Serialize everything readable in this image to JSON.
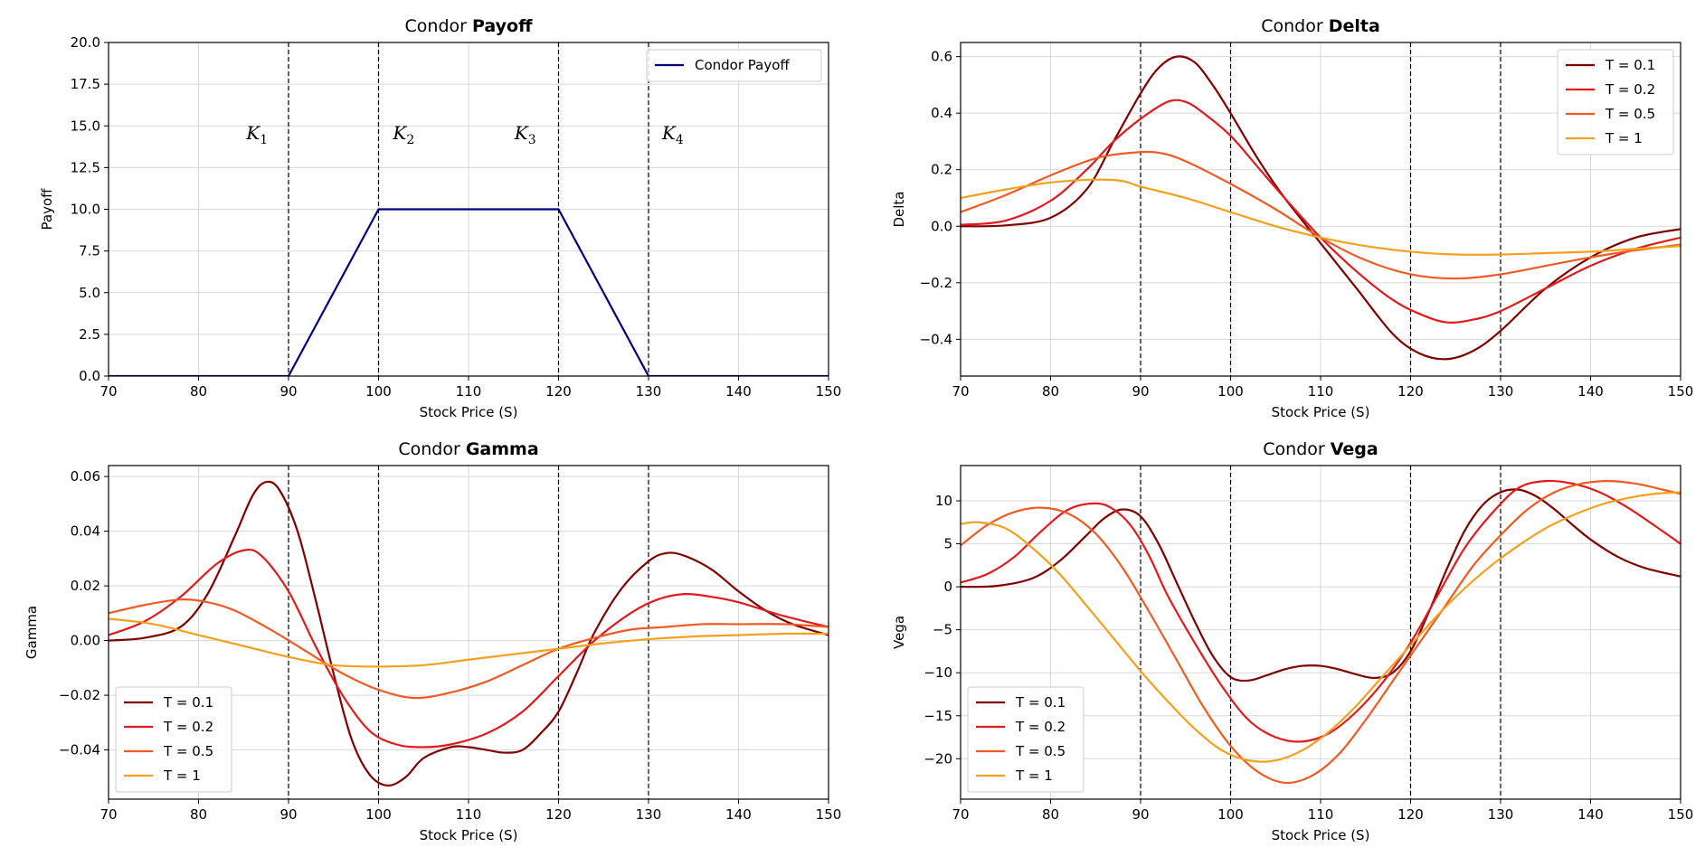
{
  "colors": {
    "payoff": "#00007f",
    "T = 0.1": "#800000",
    "T = 0.2": "#e31a1c",
    "T = 0.5": "#f15a22",
    "T = 1": "#f5a01c",
    "grid": "#d9d9d9",
    "strike_line": "#000000"
  },
  "strikes": [
    90,
    100,
    120,
    130
  ],
  "chart_data": [
    {
      "id": "payoff",
      "type": "line",
      "title": "Condor",
      "title_bold": "Payoff",
      "xlabel": "Stock Price (S)",
      "ylabel": "Payoff",
      "xlim": [
        70,
        150
      ],
      "ylim": [
        0,
        20
      ],
      "xticks": [
        70,
        80,
        90,
        100,
        110,
        120,
        130,
        140,
        150
      ],
      "xtick_labels": [
        "70",
        "80",
        "90",
        "100",
        "110",
        "120",
        "130",
        "140",
        "150"
      ],
      "yticks": [
        0,
        2.5,
        5,
        7.5,
        10,
        12.5,
        15,
        17.5,
        20
      ],
      "ytick_labels": [
        "0.0",
        "2.5",
        "5.0",
        "7.5",
        "10.0",
        "12.5",
        "15.0",
        "17.5",
        "20.0"
      ],
      "grid": true,
      "legend_position": "upper right",
      "strike_labels": [
        {
          "base": "K",
          "sub": "1",
          "x": 86.5,
          "y": 14.2
        },
        {
          "base": "K",
          "sub": "2",
          "x": 102.8,
          "y": 14.2
        },
        {
          "base": "K",
          "sub": "3",
          "x": 116.3,
          "y": 14.2
        },
        {
          "base": "K",
          "sub": "4",
          "x": 132.7,
          "y": 14.2
        }
      ],
      "series": [
        {
          "name": "Condor Payoff",
          "x": [
            70,
            90,
            100,
            120,
            130,
            150
          ],
          "y": [
            0,
            0,
            10,
            10,
            0,
            0
          ]
        }
      ]
    },
    {
      "id": "delta",
      "type": "line",
      "title": "Condor",
      "title_bold": "Delta",
      "xlabel": "Stock Price (S)",
      "ylabel": "Delta",
      "xlim": [
        70,
        150
      ],
      "ylim": [
        -0.53,
        0.65
      ],
      "xticks": [
        70,
        80,
        90,
        100,
        110,
        120,
        130,
        140,
        150
      ],
      "xtick_labels": [
        "70",
        "80",
        "90",
        "100",
        "110",
        "120",
        "130",
        "140",
        "150"
      ],
      "yticks": [
        -0.4,
        -0.2,
        0,
        0.2,
        0.4,
        0.6
      ],
      "ytick_labels": [
        "−0.4",
        "−0.2",
        "0.0",
        "0.2",
        "0.4",
        "0.6"
      ],
      "grid": true,
      "legend_position": "upper right",
      "series": [
        {
          "name": "T = 0.1",
          "x": [
            70,
            75,
            80,
            84,
            87,
            90,
            92,
            94,
            96,
            98,
            100,
            103,
            106,
            110,
            114,
            118,
            121,
            124,
            127,
            130,
            135,
            140,
            145,
            150
          ],
          "y": [
            0.0,
            0.003,
            0.03,
            0.13,
            0.3,
            0.47,
            0.56,
            0.6,
            0.58,
            0.5,
            0.4,
            0.24,
            0.1,
            -0.06,
            -0.22,
            -0.38,
            -0.45,
            -0.47,
            -0.44,
            -0.37,
            -0.22,
            -0.11,
            -0.04,
            -0.01
          ]
        },
        {
          "name": "T = 0.2",
          "x": [
            70,
            75,
            80,
            84,
            87,
            90,
            93,
            95,
            97,
            100,
            103,
            106,
            110,
            114,
            118,
            121,
            124,
            127,
            130,
            135,
            140,
            145,
            150
          ],
          "y": [
            0.005,
            0.02,
            0.09,
            0.2,
            0.3,
            0.38,
            0.44,
            0.44,
            0.4,
            0.32,
            0.21,
            0.1,
            -0.04,
            -0.16,
            -0.26,
            -0.31,
            -0.34,
            -0.33,
            -0.3,
            -0.22,
            -0.14,
            -0.08,
            -0.04
          ]
        },
        {
          "name": "T = 0.5",
          "x": [
            70,
            75,
            80,
            85,
            89,
            92,
            95,
            100,
            105,
            110,
            115,
            120,
            125,
            130,
            135,
            140,
            145,
            150
          ],
          "y": [
            0.05,
            0.11,
            0.18,
            0.24,
            0.26,
            0.26,
            0.23,
            0.15,
            0.06,
            -0.04,
            -0.12,
            -0.17,
            -0.185,
            -0.17,
            -0.14,
            -0.11,
            -0.085,
            -0.065
          ]
        },
        {
          "name": "T = 1",
          "x": [
            70,
            75,
            80,
            85,
            88,
            90,
            95,
            100,
            105,
            110,
            115,
            120,
            125,
            130,
            135,
            140,
            145,
            150
          ],
          "y": [
            0.1,
            0.13,
            0.155,
            0.165,
            0.16,
            0.14,
            0.1,
            0.05,
            0.0,
            -0.04,
            -0.07,
            -0.09,
            -0.1,
            -0.1,
            -0.095,
            -0.09,
            -0.08,
            -0.07
          ]
        }
      ]
    },
    {
      "id": "gamma",
      "type": "line",
      "title": "Condor",
      "title_bold": "Gamma",
      "xlabel": "Stock Price (S)",
      "ylabel": "Gamma",
      "xlim": [
        70,
        150
      ],
      "ylim": [
        -0.058,
        0.064
      ],
      "xticks": [
        70,
        80,
        90,
        100,
        110,
        120,
        130,
        140,
        150
      ],
      "xtick_labels": [
        "70",
        "80",
        "90",
        "100",
        "110",
        "120",
        "130",
        "140",
        "150"
      ],
      "yticks": [
        -0.04,
        -0.02,
        0,
        0.02,
        0.04,
        0.06
      ],
      "ytick_labels": [
        "−0.04",
        "−0.02",
        "0.00",
        "0.02",
        "0.04",
        "0.06"
      ],
      "grid": true,
      "legend_position": "lower left",
      "series": [
        {
          "name": "T = 0.1",
          "x": [
            70,
            74,
            78,
            81,
            84,
            86,
            87.5,
            89,
            91,
            93,
            95,
            97,
            99,
            101,
            103,
            105,
            108,
            110,
            112,
            114,
            116,
            118,
            120,
            122,
            124,
            127,
            130,
            132,
            134,
            137,
            140,
            143,
            146,
            150
          ],
          "y": [
            0,
            0.001,
            0.005,
            0.017,
            0.038,
            0.053,
            0.058,
            0.055,
            0.04,
            0.015,
            -0.012,
            -0.036,
            -0.049,
            -0.053,
            -0.05,
            -0.043,
            -0.039,
            -0.039,
            -0.04,
            -0.041,
            -0.04,
            -0.034,
            -0.026,
            -0.012,
            0.003,
            0.019,
            0.029,
            0.032,
            0.031,
            0.026,
            0.018,
            0.011,
            0.006,
            0.002
          ]
        },
        {
          "name": "T = 0.2",
          "x": [
            70,
            74,
            78,
            82,
            85,
            87,
            90,
            93,
            96,
            99,
            102,
            105,
            108,
            112,
            116,
            120,
            124,
            128,
            131,
            134,
            137,
            140,
            145,
            150
          ],
          "y": [
            0.002,
            0.007,
            0.016,
            0.028,
            0.033,
            0.031,
            0.018,
            -0.002,
            -0.02,
            -0.033,
            -0.038,
            -0.039,
            -0.038,
            -0.034,
            -0.026,
            -0.013,
            0.0,
            0.01,
            0.015,
            0.017,
            0.016,
            0.014,
            0.009,
            0.005
          ]
        },
        {
          "name": "T = 0.5",
          "x": [
            70,
            74,
            78,
            81,
            84,
            88,
            92,
            96,
            100,
            104,
            108,
            112,
            116,
            120,
            124,
            128,
            132,
            136,
            140,
            145,
            150
          ],
          "y": [
            0.01,
            0.013,
            0.015,
            0.014,
            0.011,
            0.004,
            -0.004,
            -0.012,
            -0.018,
            -0.021,
            -0.019,
            -0.015,
            -0.009,
            -0.003,
            0.001,
            0.004,
            0.005,
            0.006,
            0.006,
            0.006,
            0.005
          ]
        },
        {
          "name": "T = 1",
          "x": [
            70,
            75,
            80,
            85,
            90,
            95,
            100,
            105,
            110,
            115,
            120,
            125,
            130,
            135,
            140,
            145,
            150
          ],
          "y": [
            0.008,
            0.006,
            0.002,
            -0.002,
            -0.006,
            -0.009,
            -0.0095,
            -0.009,
            -0.007,
            -0.005,
            -0.003,
            -0.001,
            0.0005,
            0.0015,
            0.002,
            0.0025,
            0.0025
          ]
        }
      ]
    },
    {
      "id": "vega",
      "type": "line",
      "title": "Condor",
      "title_bold": "Vega",
      "xlabel": "Stock Price (S)",
      "ylabel": "Vega",
      "xlim": [
        70,
        150
      ],
      "ylim": [
        -24.7,
        14.1
      ],
      "xticks": [
        70,
        80,
        90,
        100,
        110,
        120,
        130,
        140,
        150
      ],
      "xtick_labels": [
        "70",
        "80",
        "90",
        "100",
        "110",
        "120",
        "130",
        "140",
        "150"
      ],
      "yticks": [
        -20,
        -15,
        -10,
        -5,
        0,
        5,
        10
      ],
      "ytick_labels": [
        "−20",
        "−15",
        "−10",
        "−5",
        "0",
        "5",
        "10"
      ],
      "grid": true,
      "legend_position": "lower left",
      "series": [
        {
          "name": "T = 0.1",
          "x": [
            70,
            74,
            78,
            81,
            84,
            86,
            88,
            90,
            92,
            94,
            96,
            98,
            100,
            102,
            104,
            106,
            108,
            110,
            112,
            114,
            116,
            118,
            120,
            122,
            124,
            126,
            128,
            130,
            132,
            134,
            136,
            138,
            140,
            143,
            146,
            150
          ],
          "y": [
            0,
            0.1,
            1,
            3,
            6,
            8,
            9,
            8.2,
            5,
            0.5,
            -4,
            -8,
            -10.5,
            -10.9,
            -10.3,
            -9.6,
            -9.2,
            -9.2,
            -9.6,
            -10.2,
            -10.6,
            -10,
            -7.5,
            -3,
            2,
            6.5,
            9.5,
            11,
            11.3,
            10.5,
            9,
            7.2,
            5.5,
            3.5,
            2.2,
            1.2
          ]
        },
        {
          "name": "T = 0.2",
          "x": [
            70,
            73,
            76,
            79,
            82,
            85,
            87,
            89,
            91,
            93,
            96,
            99,
            102,
            105,
            108,
            111,
            114,
            117,
            120,
            123,
            126,
            129,
            132,
            135,
            138,
            141,
            144,
            147,
            150
          ],
          "y": [
            0.5,
            1.5,
            3.5,
            6.5,
            9,
            9.7,
            9,
            7,
            3.5,
            -1,
            -6.5,
            -11.5,
            -15.5,
            -17.5,
            -18,
            -17,
            -14.5,
            -11,
            -6.5,
            -1,
            4.5,
            8.5,
            11.5,
            12.3,
            12,
            11,
            9.3,
            7.2,
            5
          ]
        },
        {
          "name": "T = 0.5",
          "x": [
            70,
            73,
            76,
            79,
            82,
            85,
            88,
            91,
            94,
            97,
            100,
            103,
            106,
            109,
            112,
            115,
            118,
            121,
            124,
            127,
            130,
            133,
            136,
            139,
            142,
            145,
            148,
            150
          ],
          "y": [
            4.8,
            7.2,
            8.7,
            9.2,
            8.5,
            6.2,
            2.2,
            -3,
            -8.5,
            -14,
            -18.5,
            -21.5,
            -22.8,
            -22,
            -19.5,
            -15.5,
            -11,
            -6.5,
            -2,
            2.5,
            6,
            9,
            11,
            12,
            12.3,
            12,
            11.3,
            10.8
          ]
        },
        {
          "name": "T = 1",
          "x": [
            70,
            72,
            75,
            78,
            81,
            84,
            87,
            90,
            93,
            96,
            99,
            102,
            105,
            108,
            111,
            114,
            117,
            120,
            123,
            126,
            129,
            132,
            135,
            138,
            141,
            144,
            147,
            150
          ],
          "y": [
            7.3,
            7.5,
            6.8,
            4.5,
            1.5,
            -2.2,
            -6,
            -9.8,
            -13.3,
            -16.5,
            -19,
            -20.2,
            -20.2,
            -19,
            -16.8,
            -13.8,
            -10.3,
            -6.8,
            -3.3,
            -0.2,
            2.5,
            4.8,
            6.8,
            8.3,
            9.5,
            10.3,
            10.8,
            11
          ]
        }
      ]
    }
  ]
}
